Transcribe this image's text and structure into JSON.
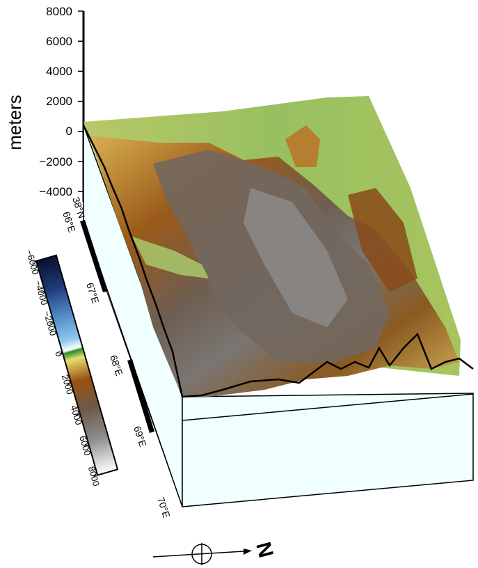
{
  "vertical_axis": {
    "title": "meters",
    "ticks": [
      "8000",
      "6000",
      "4000",
      "2000",
      "0",
      "−2000",
      "−4000"
    ]
  },
  "colorbar": {
    "ticks": [
      "−6000",
      "−4000",
      "−2000",
      "0",
      "2000",
      "4000",
      "6000",
      "8000"
    ],
    "range": [
      -6000,
      8000
    ],
    "colors": [
      "#0a1030",
      "#1f3a78",
      "#4d86c2",
      "#8cc8ee",
      "#ffffff",
      "#2a8a2a",
      "#e8dc70",
      "#9a5010",
      "#6b5a4a",
      "#8c8c8c",
      "#ffffff"
    ]
  },
  "longitude_axis": {
    "labels": [
      "66°E",
      "67°E",
      "68°E",
      "69°E",
      "70°E"
    ],
    "corner_latitude": "38°N"
  },
  "north_arrow": {
    "label": "N"
  },
  "box_fill": "#f0ffff"
}
